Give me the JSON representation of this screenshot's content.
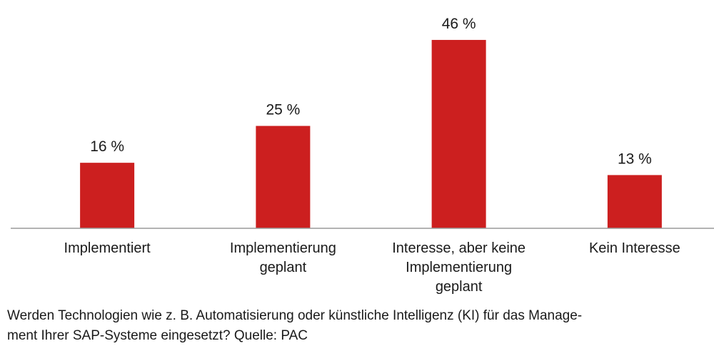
{
  "chart_data": {
    "type": "bar",
    "categories": [
      [
        "Implementiert"
      ],
      [
        "Implementierung",
        "geplant"
      ],
      [
        "Interesse, aber keine",
        "Implementierung",
        "geplant"
      ],
      [
        "Kein Interesse"
      ]
    ],
    "values": [
      16,
      25,
      46,
      13
    ],
    "value_labels": [
      "16 %",
      "25 %",
      "46 %",
      "13 %"
    ],
    "unit": "%",
    "ylim": [
      0,
      50
    ],
    "bar_color": "#cc1f1f",
    "axis_color": "#9a9a9a",
    "title": "",
    "xlabel": "",
    "ylabel": ""
  },
  "caption": {
    "line1": "Werden Technologien wie z. B. Automatisierung oder künstliche Intelligenz (KI) für das Manage-",
    "line2": "ment Ihrer SAP-Systeme eingesetzt? Quelle: PAC"
  }
}
